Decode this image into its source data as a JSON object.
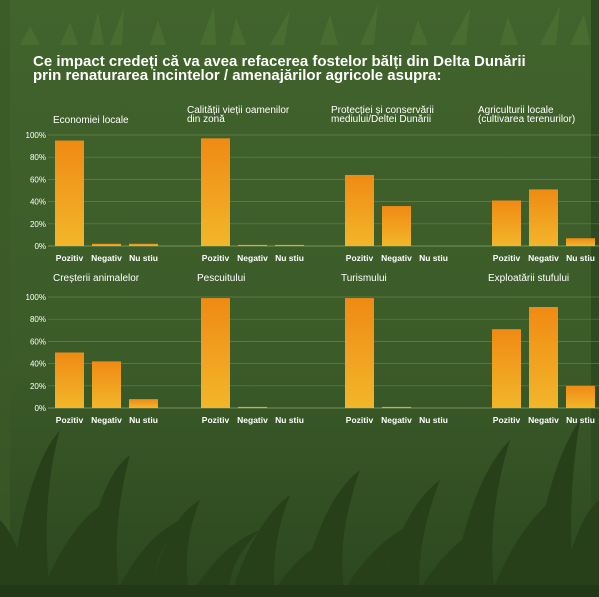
{
  "header": {
    "title_line1": "Ce impact credeți că va avea refacerea fostelor bălți din Delta Dunării",
    "title_line2": "prin renaturarea incintelor / amenajărilor agricole asupra:"
  },
  "colors": {
    "background": "#3c5d2a",
    "bar_top": "#f08a14",
    "bar_bottom": "#f2b62a",
    "text": "#ffffff",
    "grid": "#7f9a5f"
  },
  "chart_data": [
    {
      "type": "bar",
      "title": "Economiei locale",
      "categories": [
        "Pozitiv",
        "Negativ",
        "Nu stiu"
      ],
      "values": [
        95,
        2,
        2
      ],
      "ylim": [
        0,
        100
      ],
      "yticks": [
        "0%",
        "20%",
        "40%",
        "60%",
        "80%",
        "100%"
      ]
    },
    {
      "type": "bar",
      "title": "Calității vieții oamenilor din zonă",
      "categories": [
        "Pozitiv",
        "Negativ",
        "Nu stiu"
      ],
      "values": [
        97,
        1,
        1
      ],
      "ylim": [
        0,
        100
      ]
    },
    {
      "type": "bar",
      "title": "Protecției și conservării mediului/Deltei Dunării",
      "categories": [
        "Pozitiv",
        "Negativ",
        "Nu stiu"
      ],
      "values": [
        64,
        36,
        0
      ],
      "ylim": [
        0,
        100
      ]
    },
    {
      "type": "bar",
      "title": "Agriculturii locale (cultivarea terenurilor)",
      "categories": [
        "Pozitiv",
        "Negativ",
        "Nu stiu"
      ],
      "values": [
        41,
        51,
        7
      ],
      "ylim": [
        0,
        100
      ]
    },
    {
      "type": "bar",
      "title": "Creșterii animalelor",
      "categories": [
        "Pozitiv",
        "Negativ",
        "Nu stiu"
      ],
      "values": [
        50,
        42,
        8
      ],
      "ylim": [
        0,
        100
      ],
      "yticks": [
        "0%",
        "20%",
        "40%",
        "60%",
        "80%",
        "100%"
      ]
    },
    {
      "type": "bar",
      "title": "Pescuitului",
      "categories": [
        "Pozitiv",
        "Negativ",
        "Nu stiu"
      ],
      "values": [
        99,
        1,
        0
      ],
      "ylim": [
        0,
        100
      ]
    },
    {
      "type": "bar",
      "title": "Turismului",
      "categories": [
        "Pozitiv",
        "Negativ",
        "Nu stiu"
      ],
      "values": [
        99,
        1,
        0
      ],
      "ylim": [
        0,
        100
      ]
    },
    {
      "type": "bar",
      "title": "Exploatării stufului",
      "categories": [
        "Pozitiv",
        "Negativ",
        "Nu stiu"
      ],
      "values": [
        71,
        91,
        20
      ],
      "ylim": [
        0,
        100
      ]
    }
  ]
}
